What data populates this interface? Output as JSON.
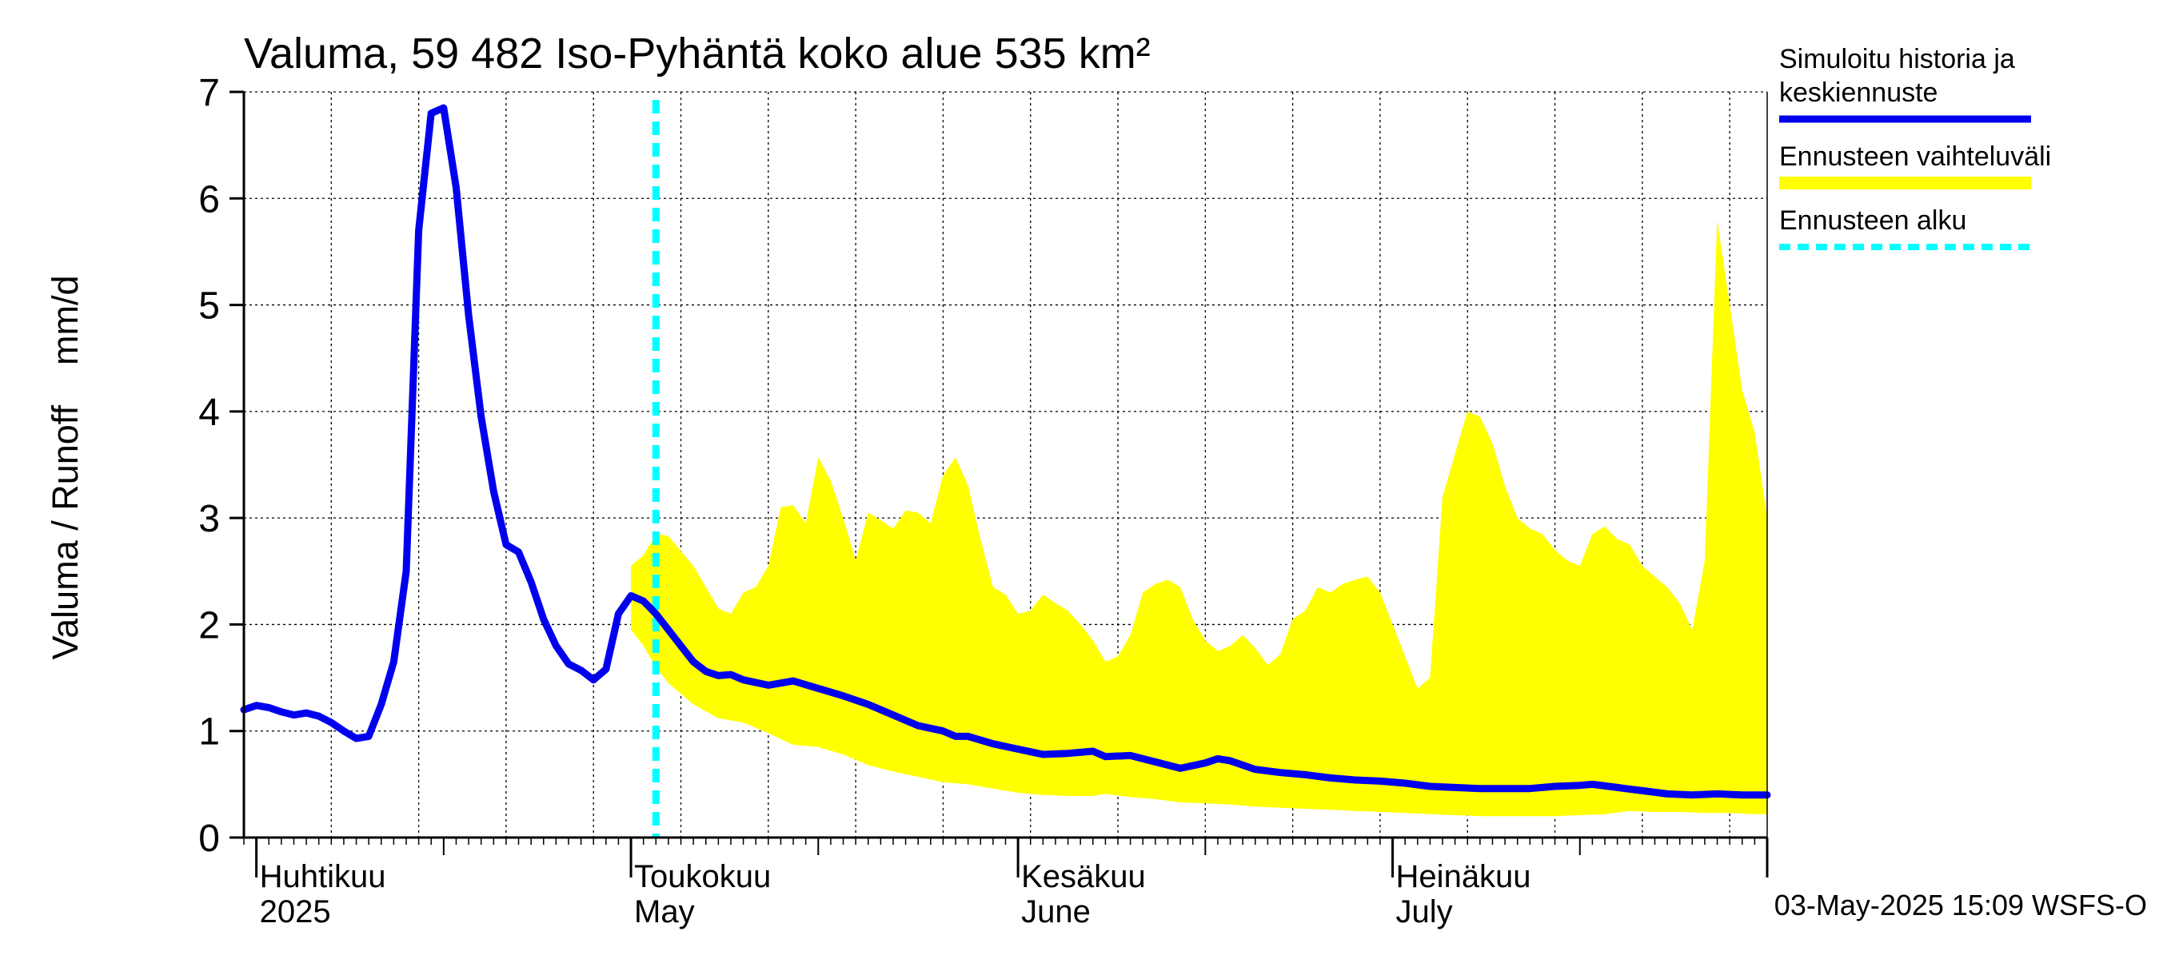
{
  "chart_data": {
    "type": "area",
    "title": "Valuma, 59 482 Iso-Pyhäntä koko alue 535 km²",
    "ylabel": "Valuma / Runoff    mm/d",
    "ylim": [
      0,
      7
    ],
    "yticks": [
      "0",
      "1",
      "2",
      "3",
      "4",
      "5",
      "6",
      "7"
    ],
    "xlim": [
      "2025-03-31",
      "2025-07-31"
    ],
    "grid": true,
    "month_labels": [
      {
        "fi": "Huhtikuu",
        "en": "2025",
        "date": "2025-04-01"
      },
      {
        "fi": "Toukokuu",
        "en": "May",
        "date": "2025-05-01"
      },
      {
        "fi": "Kesäkuu",
        "en": "June",
        "date": "2025-06-01"
      },
      {
        "fi": "Heinäkuu",
        "en": "July",
        "date": "2025-07-01"
      }
    ],
    "forecast_start": "2025-05-03",
    "legend": {
      "placement": "right",
      "entries": [
        {
          "label_lines": [
            "Simuloitu historia ja",
            "keskiennuste"
          ],
          "color": "#0000ee",
          "style": "solid"
        },
        {
          "label_lines": [
            "Ennusteen vaihteluväli"
          ],
          "color": "#ffff00",
          "style": "band"
        },
        {
          "label_lines": [
            "Ennusteen alku"
          ],
          "color": "#00ffff",
          "style": "dashed"
        }
      ]
    },
    "footer": "03-May-2025 15:09 WSFS-O",
    "colors": {
      "history": "#0000ee",
      "band": "#ffff00",
      "forecast_start": "#00ffff"
    },
    "series": [
      {
        "name": "Simuloitu historia ja keskiennuste",
        "kind": "line",
        "points": [
          [
            "2025-03-31",
            1.2
          ],
          [
            "2025-04-01",
            1.24
          ],
          [
            "2025-04-02",
            1.22
          ],
          [
            "2025-04-03",
            1.18
          ],
          [
            "2025-04-04",
            1.15
          ],
          [
            "2025-04-05",
            1.17
          ],
          [
            "2025-04-06",
            1.14
          ],
          [
            "2025-04-07",
            1.08
          ],
          [
            "2025-04-08",
            1.0
          ],
          [
            "2025-04-09",
            0.93
          ],
          [
            "2025-04-10",
            0.95
          ],
          [
            "2025-04-11",
            1.25
          ],
          [
            "2025-04-12",
            1.65
          ],
          [
            "2025-04-13",
            2.5
          ],
          [
            "2025-04-14",
            5.7
          ],
          [
            "2025-04-15",
            6.8
          ],
          [
            "2025-04-16",
            6.85
          ],
          [
            "2025-04-17",
            6.1
          ],
          [
            "2025-04-18",
            4.9
          ],
          [
            "2025-04-19",
            3.95
          ],
          [
            "2025-04-20",
            3.25
          ],
          [
            "2025-04-21",
            2.75
          ],
          [
            "2025-04-22",
            2.68
          ],
          [
            "2025-04-23",
            2.4
          ],
          [
            "2025-04-24",
            2.05
          ],
          [
            "2025-04-25",
            1.8
          ],
          [
            "2025-04-26",
            1.63
          ],
          [
            "2025-04-27",
            1.57
          ],
          [
            "2025-04-28",
            1.48
          ],
          [
            "2025-04-29",
            1.58
          ],
          [
            "2025-04-30",
            2.1
          ],
          [
            "2025-05-01",
            2.27
          ],
          [
            "2025-05-02",
            2.22
          ],
          [
            "2025-05-03",
            2.1
          ],
          [
            "2025-05-04",
            1.95
          ],
          [
            "2025-05-05",
            1.8
          ],
          [
            "2025-05-06",
            1.65
          ],
          [
            "2025-05-07",
            1.56
          ],
          [
            "2025-05-08",
            1.52
          ],
          [
            "2025-05-09",
            1.53
          ],
          [
            "2025-05-10",
            1.48
          ],
          [
            "2025-05-12",
            1.43
          ],
          [
            "2025-05-14",
            1.47
          ],
          [
            "2025-05-16",
            1.4
          ],
          [
            "2025-05-18",
            1.33
          ],
          [
            "2025-05-20",
            1.25
          ],
          [
            "2025-05-22",
            1.15
          ],
          [
            "2025-05-24",
            1.05
          ],
          [
            "2025-05-26",
            1.0
          ],
          [
            "2025-05-27",
            0.95
          ],
          [
            "2025-05-28",
            0.95
          ],
          [
            "2025-05-30",
            0.88
          ],
          [
            "2025-06-01",
            0.83
          ],
          [
            "2025-06-03",
            0.78
          ],
          [
            "2025-06-05",
            0.79
          ],
          [
            "2025-06-07",
            0.81
          ],
          [
            "2025-06-08",
            0.76
          ],
          [
            "2025-06-10",
            0.77
          ],
          [
            "2025-06-12",
            0.71
          ],
          [
            "2025-06-14",
            0.65
          ],
          [
            "2025-06-16",
            0.7
          ],
          [
            "2025-06-17",
            0.74
          ],
          [
            "2025-06-18",
            0.72
          ],
          [
            "2025-06-20",
            0.64
          ],
          [
            "2025-06-22",
            0.61
          ],
          [
            "2025-06-24",
            0.59
          ],
          [
            "2025-06-26",
            0.56
          ],
          [
            "2025-06-28",
            0.54
          ],
          [
            "2025-06-30",
            0.53
          ],
          [
            "2025-07-02",
            0.51
          ],
          [
            "2025-07-04",
            0.48
          ],
          [
            "2025-07-06",
            0.47
          ],
          [
            "2025-07-08",
            0.46
          ],
          [
            "2025-07-10",
            0.46
          ],
          [
            "2025-07-12",
            0.46
          ],
          [
            "2025-07-14",
            0.48
          ],
          [
            "2025-07-16",
            0.49
          ],
          [
            "2025-07-17",
            0.5
          ],
          [
            "2025-07-19",
            0.47
          ],
          [
            "2025-07-21",
            0.44
          ],
          [
            "2025-07-23",
            0.41
          ],
          [
            "2025-07-25",
            0.4
          ],
          [
            "2025-07-27",
            0.41
          ],
          [
            "2025-07-29",
            0.4
          ],
          [
            "2025-07-31",
            0.4
          ]
        ]
      },
      {
        "name": "Ennusteen vaihteluväli",
        "kind": "band",
        "upper": [
          [
            "2025-05-01",
            2.55
          ],
          [
            "2025-05-02",
            2.65
          ],
          [
            "2025-05-03",
            2.85
          ],
          [
            "2025-05-04",
            2.83
          ],
          [
            "2025-05-06",
            2.55
          ],
          [
            "2025-05-08",
            2.15
          ],
          [
            "2025-05-09",
            2.1
          ],
          [
            "2025-05-10",
            2.3
          ],
          [
            "2025-05-11",
            2.35
          ],
          [
            "2025-05-12",
            2.55
          ],
          [
            "2025-05-13",
            3.1
          ],
          [
            "2025-05-14",
            3.12
          ],
          [
            "2025-05-15",
            2.95
          ],
          [
            "2025-05-16",
            3.57
          ],
          [
            "2025-05-17",
            3.35
          ],
          [
            "2025-05-18",
            3.0
          ],
          [
            "2025-05-19",
            2.6
          ],
          [
            "2025-05-20",
            3.05
          ],
          [
            "2025-05-21",
            2.98
          ],
          [
            "2025-05-22",
            2.9
          ],
          [
            "2025-05-23",
            3.07
          ],
          [
            "2025-05-24",
            3.05
          ],
          [
            "2025-05-25",
            2.95
          ],
          [
            "2025-05-26",
            3.4
          ],
          [
            "2025-05-27",
            3.57
          ],
          [
            "2025-05-28",
            3.3
          ],
          [
            "2025-05-29",
            2.8
          ],
          [
            "2025-05-30",
            2.35
          ],
          [
            "2025-05-31",
            2.28
          ],
          [
            "2025-06-01",
            2.1
          ],
          [
            "2025-06-02",
            2.13
          ],
          [
            "2025-06-03",
            2.28
          ],
          [
            "2025-06-04",
            2.2
          ],
          [
            "2025-06-05",
            2.13
          ],
          [
            "2025-06-06",
            2.0
          ],
          [
            "2025-06-07",
            1.85
          ],
          [
            "2025-06-08",
            1.65
          ],
          [
            "2025-06-09",
            1.7
          ],
          [
            "2025-06-10",
            1.9
          ],
          [
            "2025-06-11",
            2.3
          ],
          [
            "2025-06-12",
            2.38
          ],
          [
            "2025-06-13",
            2.42
          ],
          [
            "2025-06-14",
            2.35
          ],
          [
            "2025-06-15",
            2.05
          ],
          [
            "2025-06-16",
            1.85
          ],
          [
            "2025-06-17",
            1.75
          ],
          [
            "2025-06-18",
            1.8
          ],
          [
            "2025-06-19",
            1.9
          ],
          [
            "2025-06-20",
            1.78
          ],
          [
            "2025-06-21",
            1.62
          ],
          [
            "2025-06-22",
            1.72
          ],
          [
            "2025-06-23",
            2.05
          ],
          [
            "2025-06-24",
            2.13
          ],
          [
            "2025-06-25",
            2.35
          ],
          [
            "2025-06-26",
            2.3
          ],
          [
            "2025-06-27",
            2.38
          ],
          [
            "2025-06-28",
            2.42
          ],
          [
            "2025-06-29",
            2.45
          ],
          [
            "2025-06-30",
            2.3
          ],
          [
            "2025-07-01",
            2.0
          ],
          [
            "2025-07-02",
            1.7
          ],
          [
            "2025-07-03",
            1.4
          ],
          [
            "2025-07-04",
            1.5
          ],
          [
            "2025-07-05",
            3.2
          ],
          [
            "2025-07-06",
            3.6
          ],
          [
            "2025-07-07",
            4.0
          ],
          [
            "2025-07-08",
            3.95
          ],
          [
            "2025-07-09",
            3.7
          ],
          [
            "2025-07-10",
            3.3
          ],
          [
            "2025-07-11",
            3.0
          ],
          [
            "2025-07-12",
            2.9
          ],
          [
            "2025-07-13",
            2.85
          ],
          [
            "2025-07-14",
            2.7
          ],
          [
            "2025-07-15",
            2.6
          ],
          [
            "2025-07-16",
            2.55
          ],
          [
            "2025-07-17",
            2.85
          ],
          [
            "2025-07-18",
            2.92
          ],
          [
            "2025-07-19",
            2.8
          ],
          [
            "2025-07-20",
            2.75
          ],
          [
            "2025-07-21",
            2.55
          ],
          [
            "2025-07-22",
            2.45
          ],
          [
            "2025-07-23",
            2.35
          ],
          [
            "2025-07-24",
            2.2
          ],
          [
            "2025-07-25",
            1.95
          ],
          [
            "2025-07-26",
            2.6
          ],
          [
            "2025-07-27",
            5.8
          ],
          [
            "2025-07-28",
            5.0
          ],
          [
            "2025-07-29",
            4.2
          ],
          [
            "2025-07-30",
            3.8
          ],
          [
            "2025-07-31",
            3.0
          ]
        ],
        "lower": [
          [
            "2025-05-01",
            1.95
          ],
          [
            "2025-05-02",
            1.8
          ],
          [
            "2025-05-03",
            1.6
          ],
          [
            "2025-05-04",
            1.45
          ],
          [
            "2025-05-06",
            1.25
          ],
          [
            "2025-05-08",
            1.12
          ],
          [
            "2025-05-10",
            1.08
          ],
          [
            "2025-05-12",
            0.98
          ],
          [
            "2025-05-14",
            0.87
          ],
          [
            "2025-05-16",
            0.85
          ],
          [
            "2025-05-18",
            0.78
          ],
          [
            "2025-05-20",
            0.68
          ],
          [
            "2025-05-22",
            0.62
          ],
          [
            "2025-05-24",
            0.57
          ],
          [
            "2025-05-26",
            0.52
          ],
          [
            "2025-05-28",
            0.5
          ],
          [
            "2025-05-30",
            0.46
          ],
          [
            "2025-06-01",
            0.42
          ],
          [
            "2025-06-03",
            0.4
          ],
          [
            "2025-06-05",
            0.39
          ],
          [
            "2025-06-07",
            0.39
          ],
          [
            "2025-06-08",
            0.41
          ],
          [
            "2025-06-10",
            0.38
          ],
          [
            "2025-06-12",
            0.36
          ],
          [
            "2025-06-14",
            0.33
          ],
          [
            "2025-06-16",
            0.32
          ],
          [
            "2025-06-18",
            0.31
          ],
          [
            "2025-06-20",
            0.29
          ],
          [
            "2025-06-22",
            0.28
          ],
          [
            "2025-06-24",
            0.27
          ],
          [
            "2025-06-26",
            0.26
          ],
          [
            "2025-06-28",
            0.25
          ],
          [
            "2025-06-30",
            0.24
          ],
          [
            "2025-07-02",
            0.23
          ],
          [
            "2025-07-04",
            0.22
          ],
          [
            "2025-07-06",
            0.21
          ],
          [
            "2025-07-08",
            0.2
          ],
          [
            "2025-07-10",
            0.2
          ],
          [
            "2025-07-12",
            0.2
          ],
          [
            "2025-07-14",
            0.2
          ],
          [
            "2025-07-16",
            0.21
          ],
          [
            "2025-07-18",
            0.22
          ],
          [
            "2025-07-20",
            0.25
          ],
          [
            "2025-07-22",
            0.24
          ],
          [
            "2025-07-24",
            0.24
          ],
          [
            "2025-07-26",
            0.23
          ],
          [
            "2025-07-28",
            0.23
          ],
          [
            "2025-07-30",
            0.22
          ],
          [
            "2025-07-31",
            0.22
          ]
        ]
      }
    ]
  }
}
